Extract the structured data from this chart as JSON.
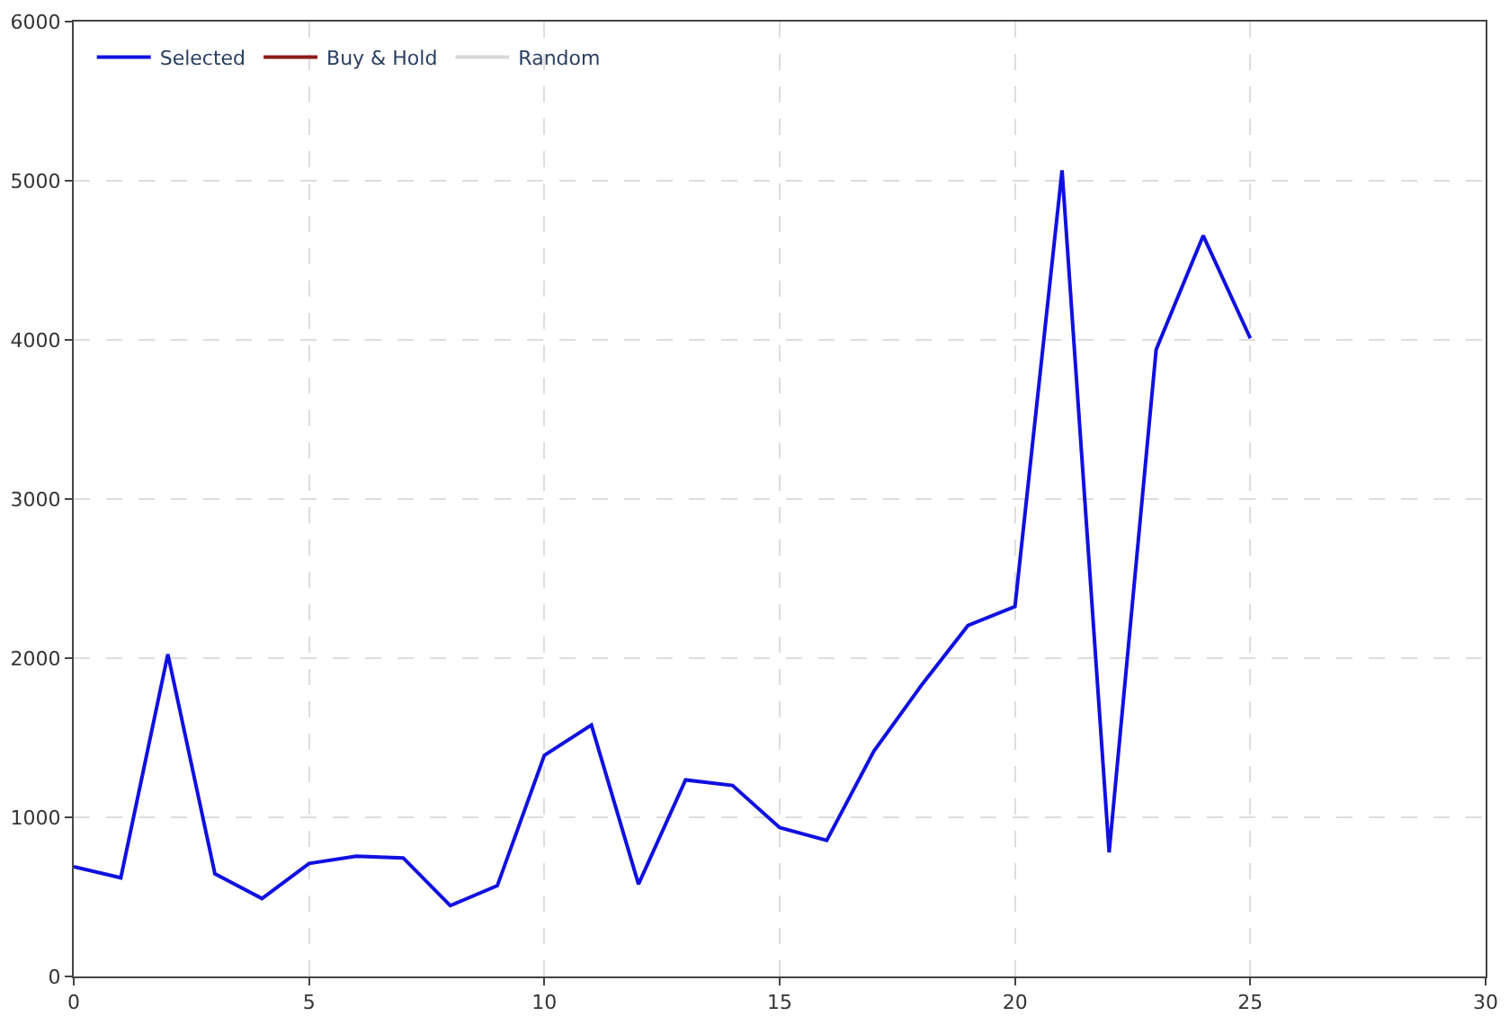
{
  "chart_data": {
    "type": "line",
    "x": [
      0,
      1,
      2,
      3,
      4,
      5,
      6,
      7,
      8,
      9,
      10,
      11,
      12,
      13,
      14,
      15,
      16,
      17,
      18,
      19,
      20,
      21,
      22,
      23,
      24,
      25
    ],
    "series": [
      {
        "name": "Selected",
        "color": "#1010e0",
        "values": [
          690,
          620,
          2025,
          645,
          490,
          710,
          755,
          745,
          445,
          570,
          1390,
          1580,
          580,
          1235,
          1200,
          935,
          855,
          1415,
          1825,
          2205,
          2325,
          5065,
          780,
          3940,
          4655,
          4010
        ]
      },
      {
        "name": "Buy & Hold",
        "color": "#8b1a1a",
        "values": [
          null,
          null,
          null,
          null,
          null,
          null,
          null,
          null,
          null,
          null,
          null,
          null,
          null,
          null,
          null,
          null,
          null,
          null,
          null,
          null,
          null,
          null,
          null,
          null,
          null,
          null
        ]
      },
      {
        "name": "Random",
        "color": "#d8d8d8",
        "values": [
          null,
          null,
          null,
          null,
          null,
          null,
          null,
          null,
          null,
          null,
          null,
          null,
          null,
          null,
          null,
          null,
          null,
          null,
          null,
          null,
          null,
          null,
          null,
          null,
          null,
          null
        ]
      }
    ],
    "xlim": [
      0,
      30
    ],
    "xticks": [
      0,
      5,
      10,
      15,
      20,
      25,
      30
    ],
    "ylim": [
      0,
      6000
    ],
    "yticks": [
      0,
      1000,
      2000,
      3000,
      4000,
      5000,
      6000
    ],
    "grid": true,
    "legend": "top left",
    "marker": "none",
    "line_style": "solid"
  }
}
